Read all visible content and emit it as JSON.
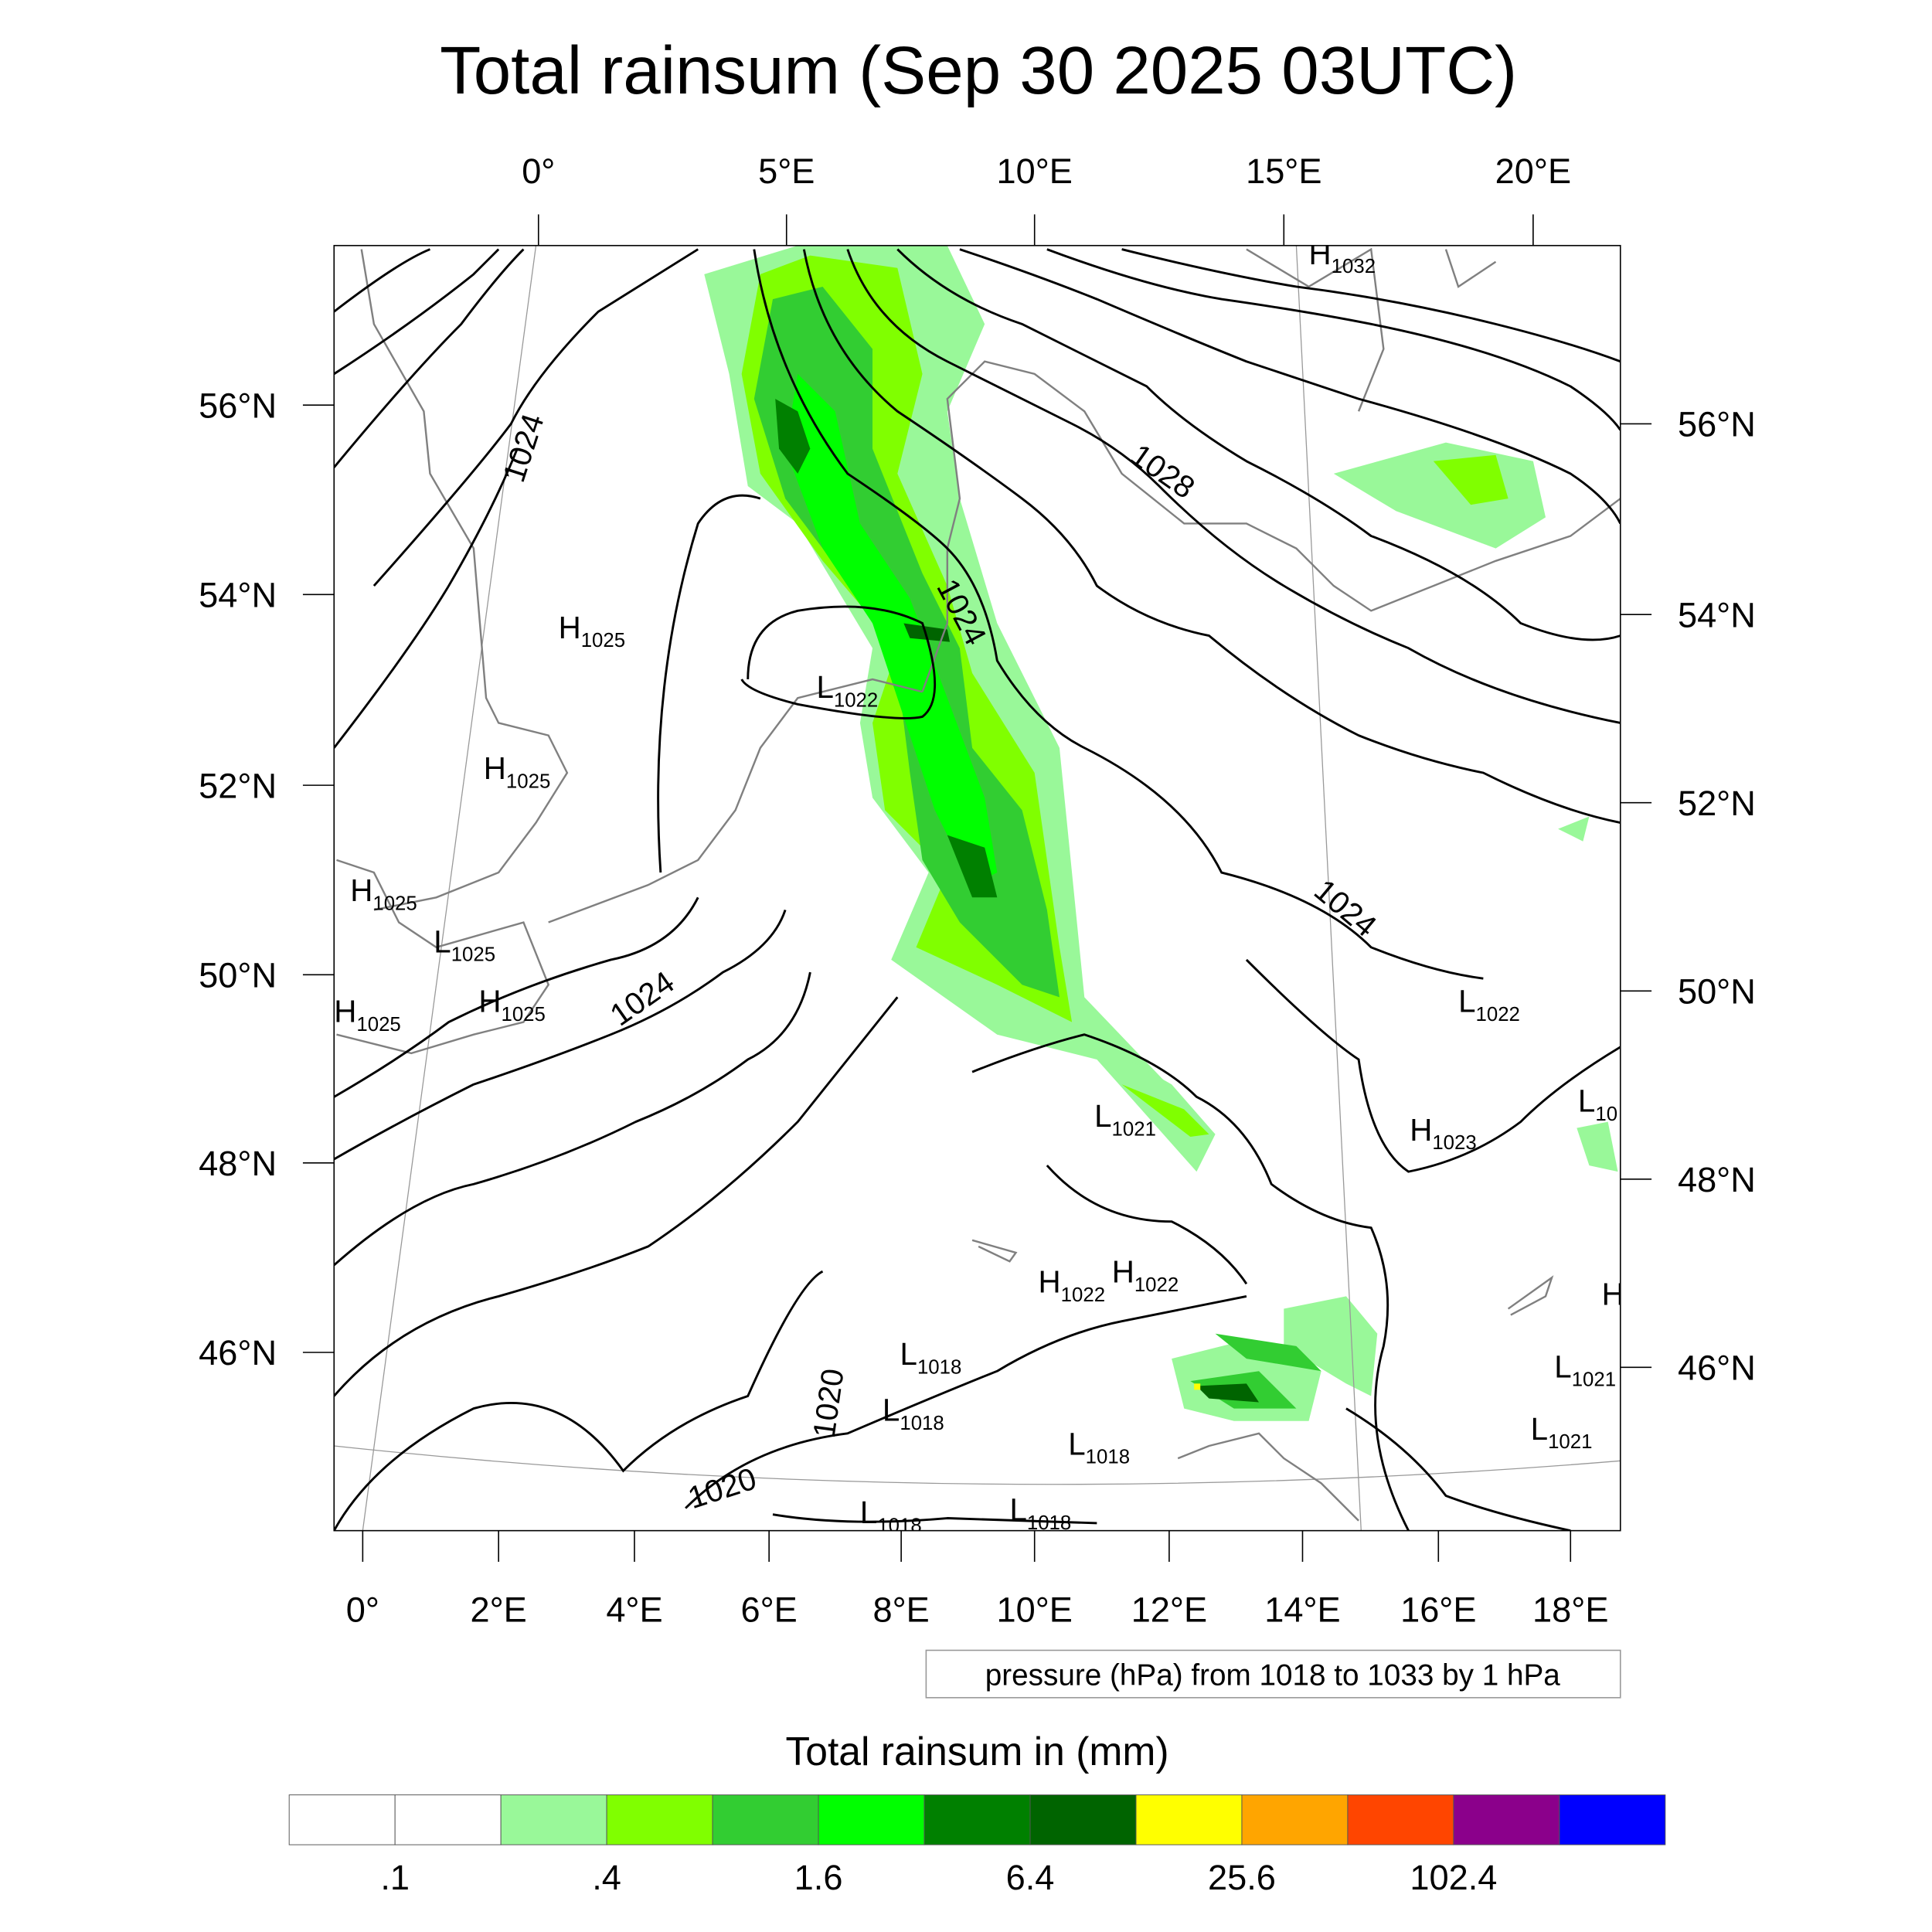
{
  "title": "Total rainsum (Sep 30 2025 03UTC)",
  "map": {
    "top_lon_labels": [
      "0°",
      "5°E",
      "10°E",
      "15°E",
      "20°E"
    ],
    "bottom_lon_labels": [
      "0°",
      "2°E",
      "4°E",
      "6°E",
      "8°E",
      "10°E",
      "12°E",
      "14°E",
      "16°E",
      "18°E"
    ],
    "left_lat_labels": [
      "56°N",
      "54°N",
      "52°N",
      "50°N",
      "48°N",
      "46°N"
    ],
    "right_lat_labels": [
      "56°N",
      "54°N",
      "52°N",
      "50°N",
      "48°N",
      "46°N"
    ],
    "contour_labels": [
      "1024",
      "1028",
      "1024",
      "1024",
      "1024",
      "1020",
      "1020"
    ],
    "pressure_centers": [
      {
        "type": "H",
        "value": "1032"
      },
      {
        "type": "L",
        "value": "1022"
      },
      {
        "type": "H",
        "value": "1025"
      },
      {
        "type": "H",
        "value": "1025"
      },
      {
        "type": "H",
        "value": "1025"
      },
      {
        "type": "L",
        "value": "1025"
      },
      {
        "type": "H",
        "value": "1025"
      },
      {
        "type": "H",
        "value": "1025"
      },
      {
        "type": "L",
        "value": "1022"
      },
      {
        "type": "L",
        "value": "1021"
      },
      {
        "type": "H",
        "value": "1023"
      },
      {
        "type": "L",
        "value": "10"
      },
      {
        "type": "H",
        "value": "1022"
      },
      {
        "type": "H",
        "value": "1022"
      },
      {
        "type": "H",
        "value": ""
      },
      {
        "type": "L",
        "value": "1018"
      },
      {
        "type": "L",
        "value": "1018"
      },
      {
        "type": "L",
        "value": "1018"
      },
      {
        "type": "L",
        "value": "1018"
      },
      {
        "type": "L",
        "value": "1018"
      },
      {
        "type": "L",
        "value": "1021"
      },
      {
        "type": "L",
        "value": "1021"
      }
    ]
  },
  "contour_info": "pressure (hPa) from 1018 to 1033 by 1 hPa",
  "colorbar": {
    "title": "Total rainsum in (mm)",
    "colors": [
      "#ffffff",
      "#ffffff",
      "#99f899",
      "#80ff00",
      "#32cd32",
      "#00ff00",
      "#008000",
      "#006400",
      "#ffff00",
      "#ffa500",
      "#ff4500",
      "#8b008b",
      "#0000ff"
    ],
    "labels": [
      ".1",
      ".4",
      "1.6",
      "6.4",
      "25.6",
      "102.4"
    ]
  }
}
